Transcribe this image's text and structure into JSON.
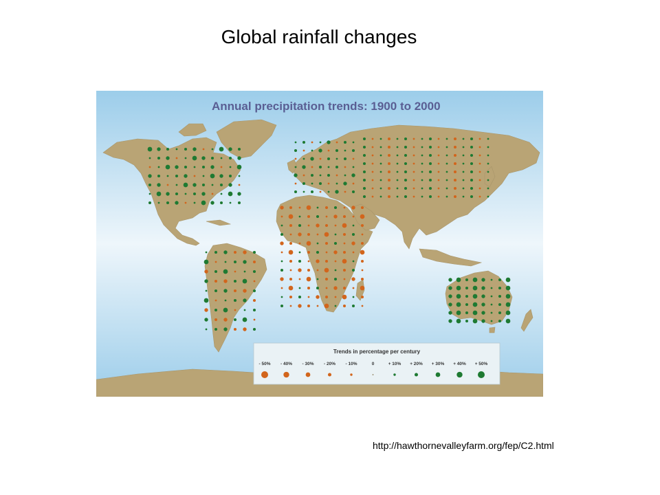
{
  "slide": {
    "title": "Global rainfall changes",
    "source_url": "http://hawthornevalleyfarm.org/fep/C2.html"
  },
  "map": {
    "title": "Annual precipitation trends: 1900 to 2000",
    "colors": {
      "ocean_top": "#9ccdea",
      "ocean_mid": "#eef6fb",
      "land": "#b9a475",
      "increase": "#1e7a32",
      "decrease": "#d2651c"
    },
    "legend": {
      "title": "Trends in percentage per century",
      "items": [
        {
          "label": "- 50%",
          "trend": -50
        },
        {
          "label": "- 40%",
          "trend": -40
        },
        {
          "label": "- 30%",
          "trend": -30
        },
        {
          "label": "- 20%",
          "trend": -20
        },
        {
          "label": "- 10%",
          "trend": -10
        },
        {
          "label": "0",
          "trend": 0
        },
        {
          "label": "+ 10%",
          "trend": 10
        },
        {
          "label": "+ 20%",
          "trend": 20
        },
        {
          "label": "+ 30%",
          "trend": 30
        },
        {
          "label": "+ 40%",
          "trend": 40
        },
        {
          "label": "+ 50%",
          "trend": 50
        }
      ]
    }
  }
}
